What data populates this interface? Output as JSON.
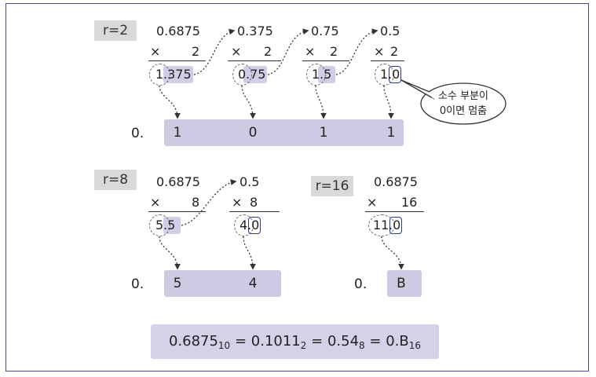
{
  "r2": {
    "label": "r=2",
    "steps": [
      {
        "top": "0.6875",
        "mul": "2",
        "res_int": "1",
        "res_frac": ".375"
      },
      {
        "top": "0.375",
        "mul": "2",
        "res_int": "0",
        "res_frac": ".75"
      },
      {
        "top": "0.75",
        "mul": "2",
        "res_int": "1",
        "res_frac": ".5"
      },
      {
        "top": "0.5",
        "mul": "2",
        "res_int": "1",
        "res_frac": ".0"
      }
    ],
    "prefix": "0.",
    "digits": [
      "1",
      "0",
      "1",
      "1"
    ]
  },
  "callout": {
    "line1": "소수 부분이",
    "line2": "0이면 멈춤"
  },
  "r8": {
    "label": "r=8",
    "steps": [
      {
        "top": "0.6875",
        "mul": "8",
        "res_int": "5",
        "res_frac": ".5"
      },
      {
        "top": "0.5",
        "mul": "8",
        "res_int": "4",
        "res_frac": ".0"
      }
    ],
    "prefix": "0.",
    "digits": [
      "5",
      "4"
    ]
  },
  "r16": {
    "label": "r=16",
    "steps": [
      {
        "top": "0.6875",
        "mul": "16",
        "res_int": "11",
        "res_frac": ".0"
      }
    ],
    "prefix": "0.",
    "digits": [
      "B"
    ]
  },
  "times_sign": "×",
  "summary": {
    "dec": "0.6875",
    "dec_base": "10",
    "bin": "0.1011",
    "bin_base": "2",
    "oct": "0.54",
    "oct_base": "8",
    "hex": "0.B",
    "hex_base": "16",
    "eq": "="
  }
}
